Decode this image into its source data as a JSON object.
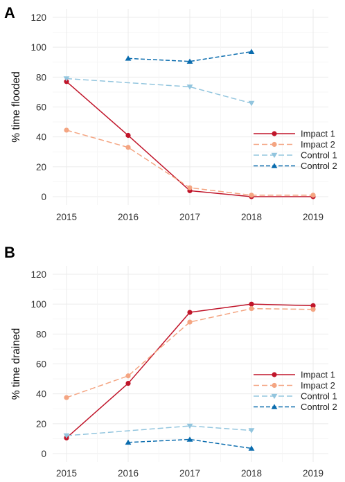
{
  "chart_data": [
    {
      "type": "line",
      "panel_label": "A",
      "ylabel": "% time flooded",
      "xlabel": "",
      "x": [
        2015,
        2016,
        2017,
        2018,
        2019
      ],
      "x_tick_labels": [
        "2015",
        "2016",
        "2017",
        "2018",
        "2019"
      ],
      "xlim": [
        2015,
        2019
      ],
      "ylim": [
        0,
        120
      ],
      "y_ticks": [
        0,
        20,
        40,
        60,
        80,
        100,
        120
      ],
      "y_tick_labels": [
        "0",
        "20",
        "40",
        "60",
        "80",
        "100",
        "120"
      ],
      "grid": true,
      "legend_position": "right",
      "series": [
        {
          "name": "Impact 1",
          "color": "#c0152a",
          "dash": "solid",
          "marker": "circle",
          "values": [
            77,
            41,
            4,
            0,
            0
          ]
        },
        {
          "name": "Impact 2",
          "color": "#f4a582",
          "dash": "longdash",
          "marker": "circle",
          "values": [
            44.5,
            33,
            6,
            1,
            1
          ]
        },
        {
          "name": "Control 1",
          "color": "#92c5de",
          "dash": "longdash",
          "marker": "triangle-down",
          "values": [
            79,
            null,
            73.5,
            62.5,
            null
          ]
        },
        {
          "name": "Control 2",
          "color": "#0a6cae",
          "dash": "dashed",
          "marker": "triangle-up",
          "values": [
            null,
            92.5,
            90.5,
            97,
            null
          ]
        }
      ]
    },
    {
      "type": "line",
      "panel_label": "B",
      "ylabel": "% time drained",
      "xlabel": "",
      "x": [
        2015,
        2016,
        2017,
        2018,
        2019
      ],
      "x_tick_labels": [
        "2015",
        "2016",
        "2017",
        "2018",
        "2019"
      ],
      "xlim": [
        2015,
        2019
      ],
      "ylim": [
        0,
        120
      ],
      "y_ticks": [
        0,
        20,
        40,
        60,
        80,
        100,
        120
      ],
      "y_tick_labels": [
        "0",
        "20",
        "40",
        "60",
        "80",
        "100",
        "120"
      ],
      "grid": true,
      "legend_position": "right",
      "series": [
        {
          "name": "Impact 1",
          "color": "#c0152a",
          "dash": "solid",
          "marker": "circle",
          "values": [
            10.5,
            47,
            94.5,
            100,
            99
          ]
        },
        {
          "name": "Impact 2",
          "color": "#f4a582",
          "dash": "longdash",
          "marker": "circle",
          "values": [
            37.5,
            52,
            88,
            97,
            96.5
          ]
        },
        {
          "name": "Control 1",
          "color": "#92c5de",
          "dash": "longdash",
          "marker": "triangle-down",
          "values": [
            12,
            null,
            18.5,
            15.5,
            null
          ]
        },
        {
          "name": "Control 2",
          "color": "#0a6cae",
          "dash": "dashed",
          "marker": "triangle-up",
          "values": [
            null,
            7.5,
            9.5,
            3.5,
            null
          ]
        }
      ]
    }
  ]
}
